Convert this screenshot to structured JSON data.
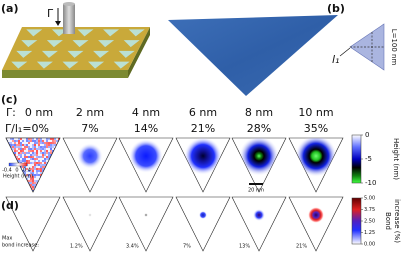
{
  "panel_a": {
    "label": "(a)",
    "tip_label": "Γ"
  },
  "panel_b": {
    "label": "(b)",
    "side_label": "L=100 nm",
    "height_label": "l₁"
  },
  "panel_c": {
    "label": "(c)",
    "gamma_prefix": "Γ:",
    "columns": [
      {
        "gamma": "0 nm",
        "ratio": "Γ/l₁=0%"
      },
      {
        "gamma": "2 nm",
        "ratio": "7%"
      },
      {
        "gamma": "4 nm",
        "ratio": "14%"
      },
      {
        "gamma": "6 nm",
        "ratio": "21%"
      },
      {
        "gamma": "8 nm",
        "ratio": "28%"
      },
      {
        "gamma": "10 nm",
        "ratio": "35%"
      }
    ],
    "inset": {
      "ticks": [
        "-0.4",
        "0",
        "0.4"
      ],
      "title": "Height (nm)"
    },
    "scale_bar": "20 nm",
    "colorbar": {
      "title": "Height (nm)",
      "ticks": [
        "0",
        "-5",
        "-10"
      ]
    }
  },
  "panel_d": {
    "label": "(d)",
    "max_label": [
      "Max",
      "bond increase:"
    ],
    "values": [
      "1.2%",
      "3.4%",
      "7%",
      "13%",
      "21%"
    ],
    "colorbar": {
      "title": [
        "Bond",
        "increase (%)"
      ],
      "ticks": [
        "5.00",
        "3.75",
        "2.50",
        "1.25",
        "0.00"
      ]
    }
  }
}
